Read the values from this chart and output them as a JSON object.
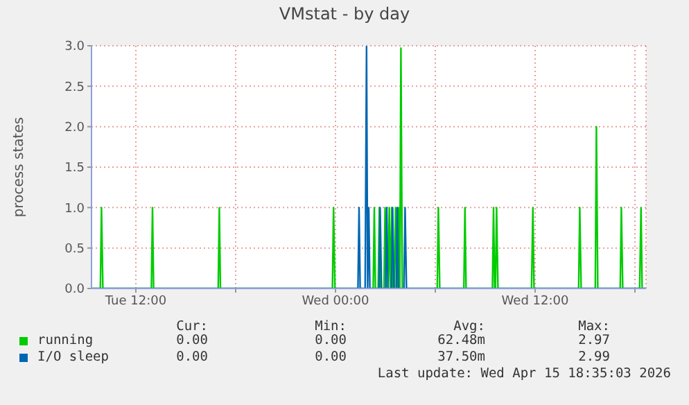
{
  "chart_data": {
    "type": "line",
    "title": "VMstat - by day",
    "ylabel": "process states",
    "xlim": [
      "2026-04-14T09:20",
      "2026-04-15T18:40"
    ],
    "xticks": [
      {
        "value": "2026-04-14T12:00",
        "label": "Tue 12:00"
      },
      {
        "value": "2026-04-14T18:00",
        "label": null
      },
      {
        "value": "2026-04-15T00:00",
        "label": "Wed 00:00"
      },
      {
        "value": "2026-04-15T06:00",
        "label": null
      },
      {
        "value": "2026-04-15T12:00",
        "label": "Wed 12:00"
      },
      {
        "value": "2026-04-15T18:00",
        "label": null
      }
    ],
    "ylim": [
      0,
      3.0
    ],
    "yticks": [
      {
        "value": 0,
        "label": "0.0"
      },
      {
        "value": 0.5,
        "label": "0.5"
      },
      {
        "value": 1,
        "label": "1.0"
      },
      {
        "value": 1.5,
        "label": "1.5"
      },
      {
        "value": 2,
        "label": "2.0"
      },
      {
        "value": 2.5,
        "label": "2.5"
      },
      {
        "value": 3,
        "label": "3.0"
      }
    ],
    "grid": true,
    "legend": "bottom",
    "marker": "none",
    "line_style": "solid",
    "series": [
      {
        "name": "running",
        "color": "#00cc00",
        "x": [
          "2026-04-14T09:20",
          "2026-04-14T09:52",
          "2026-04-14T09:56",
          "2026-04-14T10:01",
          "2026-04-14T12:56",
          "2026-04-14T13:00",
          "2026-04-14T13:04",
          "2026-04-14T16:57",
          "2026-04-14T17:01",
          "2026-04-14T17:05",
          "2026-04-14T23:49",
          "2026-04-14T23:53",
          "2026-04-14T23:58",
          "2026-04-15T02:16",
          "2026-04-15T02:20",
          "2026-04-15T02:24",
          "2026-04-15T02:34",
          "2026-04-15T02:38",
          "2026-04-15T02:43",
          "2026-04-15T02:55",
          "2026-04-15T02:59",
          "2026-04-15T03:03",
          "2026-04-15T03:10",
          "2026-04-15T03:14",
          "2026-04-15T03:18",
          "2026-04-15T03:19",
          "2026-04-15T03:23",
          "2026-04-15T03:28",
          "2026-04-15T03:32",
          "2026-04-15T03:37",
          "2026-04-15T03:41",
          "2026-04-15T03:43",
          "2026-04-15T03:47",
          "2026-04-15T03:51",
          "2026-04-15T03:52",
          "2026-04-15T03:56",
          "2026-04-15T04:01",
          "2026-04-15T06:07",
          "2026-04-15T06:11",
          "2026-04-15T06:16",
          "2026-04-15T07:43",
          "2026-04-15T07:47",
          "2026-04-15T07:51",
          "2026-04-15T09:26",
          "2026-04-15T09:30",
          "2026-04-15T09:34",
          "2026-04-15T09:37",
          "2026-04-15T09:41",
          "2026-04-15T09:46",
          "2026-04-15T11:47",
          "2026-04-15T11:52",
          "2026-04-15T11:56",
          "2026-04-15T14:37",
          "2026-04-15T14:41",
          "2026-04-15T14:46",
          "2026-04-15T15:37",
          "2026-04-15T15:41",
          "2026-04-15T15:46",
          "2026-04-15T17:07",
          "2026-04-15T17:11",
          "2026-04-15T17:16",
          "2026-04-15T18:17",
          "2026-04-15T18:22",
          "2026-04-15T18:26",
          "2026-04-15T18:40"
        ],
        "values": [
          0,
          0,
          1,
          0,
          0,
          1,
          0,
          0,
          1,
          0,
          0,
          1,
          0,
          0,
          1,
          0,
          0,
          1,
          0,
          0,
          1,
          0,
          0,
          1,
          0,
          0,
          1,
          0,
          0,
          1,
          0,
          0,
          1,
          0,
          0,
          2.97,
          0,
          0,
          1,
          0,
          0,
          1,
          0,
          0,
          1,
          0,
          0,
          1,
          0,
          0,
          1,
          0,
          0,
          1,
          0,
          0,
          2.0,
          0,
          0,
          1,
          0,
          0,
          1,
          0,
          0
        ]
      },
      {
        "name": "I/O sleep",
        "color": "#0066b3",
        "x": [
          "2026-04-14T09:20",
          "2026-04-15T01:21",
          "2026-04-15T01:25",
          "2026-04-15T01:29",
          "2026-04-15T01:47",
          "2026-04-15T01:52",
          "2026-04-15T01:56",
          "2026-04-15T02:00",
          "2026-04-15T02:04",
          "2026-04-15T02:37",
          "2026-04-15T02:41",
          "2026-04-15T02:46",
          "2026-04-15T03:01",
          "2026-04-15T03:05",
          "2026-04-15T03:09",
          "2026-04-15T03:22",
          "2026-04-15T03:26",
          "2026-04-15T03:31",
          "2026-04-15T03:39",
          "2026-04-15T03:43",
          "2026-04-15T03:47",
          "2026-04-15T04:07",
          "2026-04-15T04:11",
          "2026-04-15T04:16",
          "2026-04-15T18:40"
        ],
        "values": [
          0,
          0,
          1,
          0,
          0,
          2.99,
          0,
          1,
          0,
          0,
          1,
          0,
          0,
          1,
          0,
          0,
          1,
          0,
          0,
          1,
          0,
          0,
          1,
          0,
          0
        ]
      }
    ],
    "annotations": [
      "Cur:",
      "Min:",
      "Avg:",
      "Max:",
      "0.00",
      "0.00",
      "62.48m",
      "2.97",
      "0.00",
      "0.00",
      "37.50m",
      "2.99",
      "Last update: Wed Apr 15 18:35:03 2026"
    ]
  }
}
